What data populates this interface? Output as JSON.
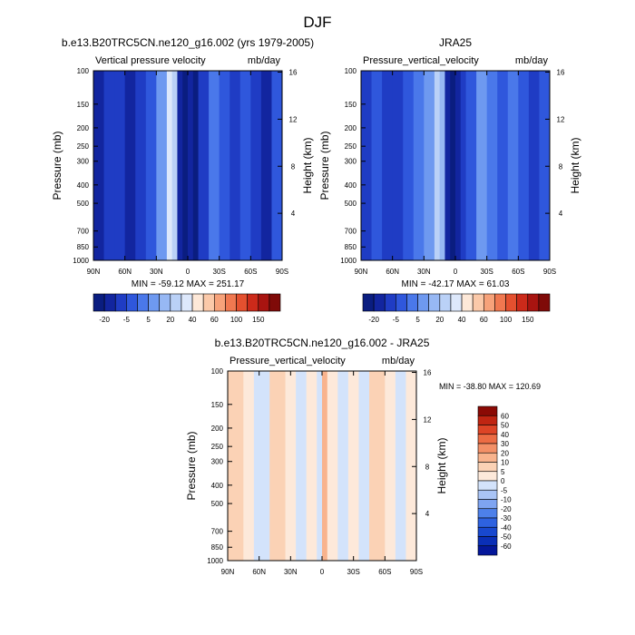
{
  "figure_title": "DJF",
  "colors": {
    "neg": [
      "#0a1d80",
      "#12259f",
      "#1f3cc4",
      "#2f57dc",
      "#4a78ea",
      "#6e99f0",
      "#97b8f4",
      "#bad1f7",
      "#dde8fb"
    ],
    "pos": [
      "#fde8d8",
      "#fbc9a9",
      "#f7a27a",
      "#f07850",
      "#e4502f",
      "#cc2a1a",
      "#a81410",
      "#7f0a08"
    ],
    "diff_neg": [
      "#04179a",
      "#0a2fb7",
      "#1848cf",
      "#2e62e0",
      "#4d80ea",
      "#7ea4f1",
      "#a9c4f6",
      "#d3e3fb"
    ],
    "diff_pos": [
      "#fde9da",
      "#fbd2b5",
      "#f8b38d",
      "#f39067",
      "#ec6c44",
      "#dd4426",
      "#c02512",
      "#8b0a05"
    ]
  },
  "chart_data": [
    {
      "type": "heatmap",
      "title": "b.e13.B20TRC5CN.ne120_g16.002 (yrs 1979-2005)",
      "left_label": "Vertical pressure velocity",
      "units": "mb/day",
      "ylabel": "Pressure (mb)",
      "y2label": "Height (km)",
      "x_ticks": [
        "90N",
        "60N",
        "30N",
        "0",
        "30S",
        "60S",
        "90S"
      ],
      "y_ticks": [
        "100",
        "150",
        "200",
        "250",
        "300",
        "400",
        "500",
        "700",
        "850",
        "1000"
      ],
      "y2_ticks": [
        "16",
        "12",
        "8",
        "4"
      ],
      "stats": "MIN = -59.12  MAX = 251.17",
      "colorbar_labels": [
        "-20",
        "-5",
        "5",
        "20",
        "40",
        "60",
        "100",
        "150"
      ],
      "bands": [
        {
          "lat": 90,
          "level": 1
        },
        {
          "lat": 80,
          "level": 2
        },
        {
          "lat": 70,
          "level": 2
        },
        {
          "lat": 60,
          "level": 1
        },
        {
          "lat": 50,
          "level": 2
        },
        {
          "lat": 40,
          "level": 3
        },
        {
          "lat": 30,
          "level": 5
        },
        {
          "lat": 20,
          "level": 8
        },
        {
          "lat": 15,
          "level": 7
        },
        {
          "lat": 10,
          "level": 1
        },
        {
          "lat": 5,
          "level": 0
        },
        {
          "lat": 0,
          "level": 1
        },
        {
          "lat": -5,
          "level": 0
        },
        {
          "lat": -10,
          "level": 2
        },
        {
          "lat": -20,
          "level": 4
        },
        {
          "lat": -30,
          "level": 3
        },
        {
          "lat": -40,
          "level": 2
        },
        {
          "lat": -50,
          "level": 3
        },
        {
          "lat": -60,
          "level": 2
        },
        {
          "lat": -70,
          "level": 1
        },
        {
          "lat": -80,
          "level": 3
        },
        {
          "lat": -90,
          "level": 4
        }
      ]
    },
    {
      "type": "heatmap",
      "title": "JRA25",
      "left_label": "Pressure_vertical_velocity",
      "units": "mb/day",
      "ylabel": "Pressure (mb)",
      "y2label": "Height (km)",
      "x_ticks": [
        "90N",
        "60N",
        "30N",
        "0",
        "30S",
        "60S",
        "90S"
      ],
      "y_ticks": [
        "100",
        "150",
        "200",
        "250",
        "300",
        "400",
        "500",
        "700",
        "850",
        "1000"
      ],
      "y2_ticks": [
        "16",
        "12",
        "8",
        "4"
      ],
      "stats": "MIN = -42.17  MAX = 61.03",
      "colorbar_labels": [
        "-20",
        "-5",
        "5",
        "20",
        "40",
        "60",
        "100",
        "150"
      ],
      "bands": [
        {
          "lat": 90,
          "level": 2
        },
        {
          "lat": 80,
          "level": 3
        },
        {
          "lat": 70,
          "level": 2
        },
        {
          "lat": 60,
          "level": 2
        },
        {
          "lat": 50,
          "level": 3
        },
        {
          "lat": 40,
          "level": 4
        },
        {
          "lat": 30,
          "level": 5
        },
        {
          "lat": 20,
          "level": 7
        },
        {
          "lat": 15,
          "level": 6
        },
        {
          "lat": 10,
          "level": 1
        },
        {
          "lat": 5,
          "level": 0
        },
        {
          "lat": 0,
          "level": 1
        },
        {
          "lat": -5,
          "level": 2
        },
        {
          "lat": -10,
          "level": 3
        },
        {
          "lat": -20,
          "level": 5
        },
        {
          "lat": -30,
          "level": 4
        },
        {
          "lat": -40,
          "level": 3
        },
        {
          "lat": -50,
          "level": 4
        },
        {
          "lat": -60,
          "level": 3
        },
        {
          "lat": -70,
          "level": 2
        },
        {
          "lat": -80,
          "level": 3
        },
        {
          "lat": -90,
          "level": 4
        }
      ]
    },
    {
      "type": "heatmap",
      "title": "b.e13.B20TRC5CN.ne120_g16.002 - JRA25",
      "left_label": "Pressure_vertical_velocity",
      "units": "mb/day",
      "ylabel": "Pressure (mb)",
      "y2label": "Height (km)",
      "x_ticks": [
        "90N",
        "60N",
        "30N",
        "0",
        "30S",
        "60S",
        "90S"
      ],
      "y_ticks": [
        "100",
        "150",
        "200",
        "250",
        "300",
        "400",
        "500",
        "700",
        "850",
        "1000"
      ],
      "y2_ticks": [
        "16",
        "12",
        "8",
        "4"
      ],
      "stats": "MIN = -38.80  MAX = 120.69",
      "colorbar_labels": [
        "60",
        "50",
        "40",
        "30",
        "20",
        "10",
        "5",
        "0",
        "-5",
        "-10",
        "-20",
        "-30",
        "-40",
        "-50",
        "-60"
      ],
      "bands": [
        {
          "lat": 90,
          "level": 9
        },
        {
          "lat": 75,
          "level": 8
        },
        {
          "lat": 65,
          "level": 7
        },
        {
          "lat": 50,
          "level": 9
        },
        {
          "lat": 35,
          "level": 8
        },
        {
          "lat": 25,
          "level": 7
        },
        {
          "lat": 15,
          "level": 8
        },
        {
          "lat": 5,
          "level": 7
        },
        {
          "lat": 0,
          "level": 10
        },
        {
          "lat": -5,
          "level": 8
        },
        {
          "lat": -15,
          "level": 7
        },
        {
          "lat": -25,
          "level": 8
        },
        {
          "lat": -35,
          "level": 7
        },
        {
          "lat": -45,
          "level": 9
        },
        {
          "lat": -60,
          "level": 8
        },
        {
          "lat": -70,
          "level": 7
        },
        {
          "lat": -80,
          "level": 8
        },
        {
          "lat": -90,
          "level": 7
        }
      ]
    }
  ]
}
